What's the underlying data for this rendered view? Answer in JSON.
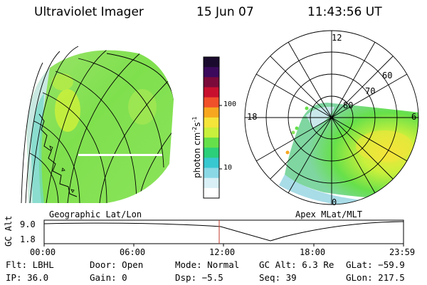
{
  "header": {
    "instrument": "Ultraviolet Imager",
    "date": "15 Jun 07",
    "time": "11:43:56 UT"
  },
  "colorbar": {
    "unit_label": "photon cm",
    "unit_sup1": "-2",
    "unit_mid": "s",
    "unit_sup2": "-1",
    "ticks": [
      "100",
      "10"
    ],
    "colors": [
      "#1a0b2e",
      "#3b0a5c",
      "#7a0a3a",
      "#c8102e",
      "#f0502a",
      "#f7a71f",
      "#f5e43a",
      "#c8f03c",
      "#66e04a",
      "#2ccf7a",
      "#38c8d0",
      "#8ad8e6",
      "#d8f0f6",
      "#ffffff"
    ]
  },
  "left_panel": {
    "caption": "Geographic Lat/Lon"
  },
  "right_panel": {
    "caption": "Apex MLat/MLT",
    "mlt_labels": [
      "12",
      "18",
      "6",
      "0"
    ],
    "lat_labels": [
      "60",
      "70",
      "80"
    ]
  },
  "altitude_panel": {
    "ylabel": "GC Alt",
    "yticks": [
      "9.0",
      "1.8"
    ],
    "xticks": [
      "00:00",
      "06:00",
      "12:00",
      "18:00",
      "23:59"
    ],
    "current_time_marker": "11:43"
  },
  "info": {
    "row1": [
      {
        "label": "Flt:",
        "value": "LBHL"
      },
      {
        "label": "Door:",
        "value": "Open"
      },
      {
        "label": "Mode:",
        "value": "Normal"
      },
      {
        "label": "GC Alt:",
        "value": "6.3 Re"
      },
      {
        "label": "GLat:",
        "value": "−59.9"
      }
    ],
    "row2": [
      {
        "label": "IP:",
        "value": "36.0"
      },
      {
        "label": "Gain:",
        "value": "0"
      },
      {
        "label": "Dsp:",
        "value": "−5.5"
      },
      {
        "label": "Seq:",
        "value": "39"
      },
      {
        "label": "GLon:",
        "value": "217.5"
      }
    ]
  }
}
